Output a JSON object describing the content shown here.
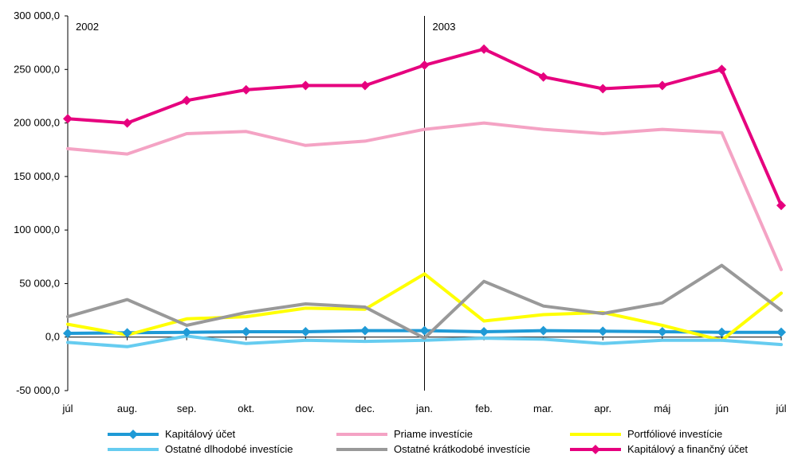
{
  "chart_data": {
    "type": "line",
    "categories": [
      "júl",
      "aug.",
      "sep.",
      "okt.",
      "nov.",
      "dec.",
      "jan.",
      "feb.",
      "mar.",
      "apr.",
      "máj",
      "jún",
      "júl"
    ],
    "y_ticks": [
      "300 000,0",
      "250 000,0",
      "200 000,0",
      "150 000,0",
      "100 000,0",
      "50 000,0",
      "0,0",
      "-50 000,0"
    ],
    "ylim": [
      -50000,
      300000
    ],
    "grid": false,
    "legend_position": "bottom",
    "annotations": [
      {
        "label": "2002",
        "at_category_index": 0
      },
      {
        "label": "2003",
        "at_category_index": 6
      }
    ],
    "series": [
      {
        "name": "Kapitálový účet",
        "color": "#1f9ad6",
        "marker": "diamond",
        "values": [
          3500,
          4000,
          4500,
          5000,
          5000,
          6000,
          6000,
          5000,
          6000,
          5500,
          5000,
          4500,
          4500
        ]
      },
      {
        "name": "Priame investície",
        "color": "#f4a3c4",
        "marker": "none",
        "values": [
          176000,
          171000,
          190000,
          192000,
          179000,
          183000,
          194000,
          200000,
          194000,
          190000,
          194000,
          191000,
          63000
        ]
      },
      {
        "name": "Portfóliové investície",
        "color": "#ffff00",
        "marker": "none",
        "values": [
          12000,
          2000,
          17000,
          19000,
          27000,
          26000,
          59000,
          15000,
          21000,
          23000,
          11000,
          -3000,
          41000
        ]
      },
      {
        "name": "Ostatné dlhodobé investície",
        "color": "#66ccf0",
        "marker": "none",
        "values": [
          -5000,
          -9000,
          1000,
          -6000,
          -3000,
          -4000,
          -3000,
          -1000,
          -2000,
          -6000,
          -3000,
          -3000,
          -7000
        ]
      },
      {
        "name": "Ostatné krátkodobé investície",
        "color": "#999999",
        "marker": "none",
        "values": [
          19000,
          35000,
          11000,
          23000,
          31000,
          28000,
          -1000,
          52000,
          29000,
          22000,
          32000,
          67000,
          25000
        ]
      },
      {
        "name": "Kapitálový a finančný účet",
        "color": "#e6007e",
        "marker": "diamond",
        "values": [
          204000,
          200000,
          221000,
          231000,
          235000,
          235000,
          254000,
          269000,
          243000,
          232000,
          235000,
          250000,
          123000
        ]
      }
    ]
  }
}
